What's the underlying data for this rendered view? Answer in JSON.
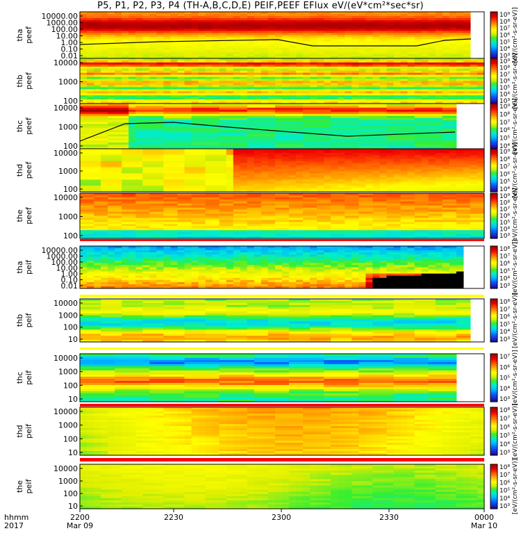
{
  "title": "P5, P1, P2, P3, P4 (TH-A,B,C,D,E) PEIF,PEEF EFlux eV/(eV*cm²*sec*sr)",
  "colorscale": [
    "#1a0066",
    "#2222cc",
    "#0066ff",
    "#00bbff",
    "#00eecc",
    "#33ee33",
    "#ddee00",
    "#ffff00",
    "#ffaa00",
    "#ff5500",
    "#ee0000",
    "#aa0000"
  ],
  "unit_label": "[eV/(cm²-s-sr-eV)]",
  "chart_data": {
    "type": "heatmap",
    "x_labels": [
      "2200",
      "2230",
      "2300",
      "2330",
      "0000"
    ],
    "x_sublabels": {
      "2200": "Mar 09",
      "0000": "Mar 10"
    },
    "corner_labels": [
      "hhmm",
      "2017"
    ],
    "panels": [
      {
        "label1": "tha",
        "label2": "peef",
        "ticks": [
          "10000.00",
          "1000.00",
          "100.00",
          "10.00",
          "1.00",
          "0.10",
          "0.01"
        ],
        "cbar_ticks": [
          "10⁹",
          "10⁸",
          "10⁷",
          "10⁶",
          "10⁵",
          "10⁴",
          "10³"
        ]
      },
      {
        "label1": "thb",
        "label2": "peef",
        "ticks": [
          "10000",
          "1000",
          "100"
        ],
        "cbar_ticks": [
          "10⁹",
          "10⁸",
          "10⁷",
          "10⁶",
          "10⁵",
          "10⁴",
          "10³"
        ]
      },
      {
        "label1": "thc",
        "label2": "peef",
        "ticks": [
          "10000",
          "1000",
          "100"
        ],
        "cbar_ticks": [
          "10⁹",
          "10⁸",
          "10⁷",
          "10⁶",
          "10⁵",
          "10⁴"
        ]
      },
      {
        "label1": "thd",
        "label2": "peef",
        "ticks": [
          "10000",
          "1000",
          "100"
        ],
        "cbar_ticks": [
          "10⁹",
          "10⁸",
          "10⁷",
          "10⁶",
          "10⁵",
          "10⁴"
        ]
      },
      {
        "label1": "the",
        "label2": "peef",
        "ticks": [
          "10000",
          "1000",
          "100"
        ],
        "cbar_ticks": [
          "10⁹",
          "10⁸",
          "10⁷",
          "10⁶",
          "10⁵",
          "10⁴",
          "10³"
        ]
      },
      {
        "label1": "tha",
        "label2": "peif",
        "ticks": [
          "10000.00",
          "1000.00",
          "100.00",
          "10.00",
          "1.00",
          "0.10",
          "0.01"
        ],
        "cbar_ticks": [
          "10⁸",
          "10⁷",
          "10⁶",
          "10⁵",
          "10⁴",
          "10³"
        ]
      },
      {
        "label1": "thb",
        "label2": "peif",
        "ticks": [
          "10000",
          "1000",
          "100",
          "10"
        ],
        "cbar_ticks": [
          "10⁸",
          "10⁷",
          "10⁶",
          "10⁵",
          "10⁴",
          "10³"
        ]
      },
      {
        "label1": "thc",
        "label2": "peif",
        "ticks": [
          "10000",
          "1000",
          "100",
          "10"
        ],
        "cbar_ticks": [
          "10⁷",
          "10⁶",
          "10⁵",
          "10⁴",
          "10³"
        ]
      },
      {
        "label1": "thd",
        "label2": "peif",
        "ticks": [
          "10000",
          "1000",
          "100",
          "10"
        ],
        "cbar_ticks": [
          "10⁸",
          "10⁷",
          "10⁶",
          "10⁵",
          "10⁴",
          "10³"
        ]
      },
      {
        "label1": "the",
        "label2": "peif",
        "ticks": [
          "10000",
          "1000",
          "100",
          "10"
        ],
        "cbar_ticks": [
          "10⁸",
          "10⁷",
          "10⁶",
          "10⁵",
          "10⁴",
          "10³"
        ]
      }
    ]
  }
}
